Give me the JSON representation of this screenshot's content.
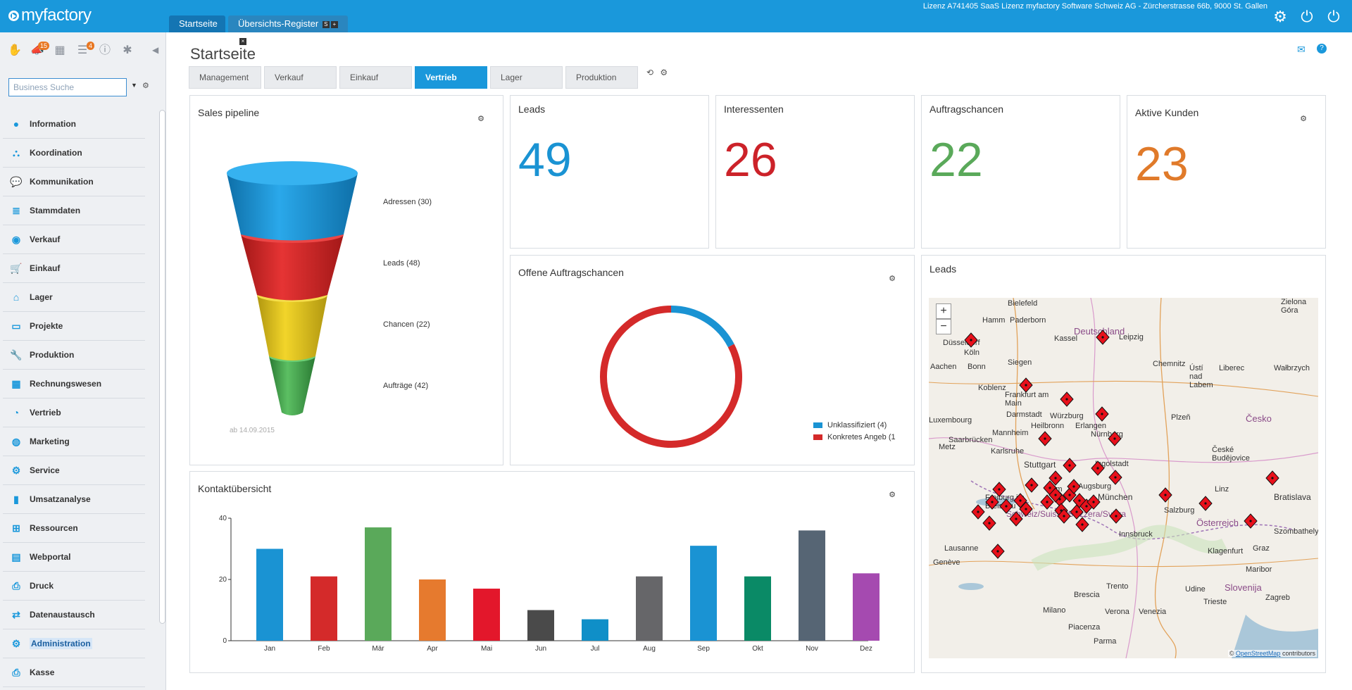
{
  "app": {
    "logo_text": "myfactory",
    "top_tabs": [
      "Startseite",
      "Übersichts-Register"
    ],
    "top_tab_buttons": [
      "S",
      "+",
      "×"
    ],
    "license": "Lizenz A741405 SaaS Lizenz myfactory Software Schweiz AG - Zürcherstrasse 66b, 9000 St. Gallen",
    "top_icons": [
      "gear-icon",
      "power-icon",
      "power-download-icon"
    ]
  },
  "sidebar": {
    "icons": [
      {
        "icon": "hand-icon",
        "badge": ""
      },
      {
        "icon": "megaphone-icon",
        "badge": "15"
      },
      {
        "icon": "calendar-icon",
        "badge": ""
      },
      {
        "icon": "notes-icon",
        "badge": "4"
      },
      {
        "icon": "info-icon",
        "badge": ""
      },
      {
        "icon": "puzzle-icon",
        "badge": ""
      }
    ],
    "search_placeholder": "Business Suche",
    "items": [
      {
        "label": "Information",
        "icon": "info-icon"
      },
      {
        "label": "Koordination",
        "icon": "network-icon"
      },
      {
        "label": "Kommunikation",
        "icon": "chat-icon"
      },
      {
        "label": "Stammdaten",
        "icon": "database-icon"
      },
      {
        "label": "Verkauf",
        "icon": "coins-icon"
      },
      {
        "label": "Einkauf",
        "icon": "cart-icon"
      },
      {
        "label": "Lager",
        "icon": "warehouse-icon"
      },
      {
        "label": "Projekte",
        "icon": "presentation-icon"
      },
      {
        "label": "Produktion",
        "icon": "wrench-hand-icon"
      },
      {
        "label": "Rechnungswesen",
        "icon": "grid-icon"
      },
      {
        "label": "Vertrieb",
        "icon": "chart-icon"
      },
      {
        "label": "Marketing",
        "icon": "globe-icon"
      },
      {
        "label": "Service",
        "icon": "gear-icon"
      },
      {
        "label": "Umsatzanalyse",
        "icon": "bar-chart-icon"
      },
      {
        "label": "Ressourcen",
        "icon": "resources-icon"
      },
      {
        "label": "Webportal",
        "icon": "webportal-icon"
      },
      {
        "label": "Druck",
        "icon": "printer-icon"
      },
      {
        "label": "Datenaustausch",
        "icon": "exchange-icon"
      },
      {
        "label": "Administration",
        "icon": "gear-icon"
      },
      {
        "label": "Kasse",
        "icon": "register-icon"
      }
    ],
    "selected": "Administration"
  },
  "main": {
    "title": "Startseite",
    "tabs": [
      "Management",
      "Verkauf",
      "Einkauf",
      "Vertrieb",
      "Lager",
      "Produktion"
    ],
    "active_tab": "Vertrieb"
  },
  "sales_pipeline": {
    "title": "Sales pipeline",
    "stages": [
      {
        "label": "Adressen (30)",
        "color": "#1a93d3"
      },
      {
        "label": "Leads (48)",
        "color": "#d32a2a"
      },
      {
        "label": "Chancen (22)",
        "color": "#e7c716"
      },
      {
        "label": "Aufträge (42)",
        "color": "#3f9b48"
      }
    ],
    "date_note": "ab 14.09.2015"
  },
  "kpis": [
    {
      "title": "Leads",
      "value": "49",
      "color": "#1a93d3"
    },
    {
      "title": "Interessenten",
      "value": "26",
      "color": "#cc2229"
    },
    {
      "title": "Auftragschancen",
      "value": "22",
      "color": "#5aa95a"
    },
    {
      "title": "Aktive Kunden",
      "value": "23",
      "color": "#e07a2a"
    }
  ],
  "offene_auftragschancen": {
    "title": "Offene Auftragschancen",
    "legend": [
      {
        "label": "Unklassifiziert (4)",
        "color": "#1a93d3"
      },
      {
        "label": "Konkretes Angeb (1",
        "color": "#d42a2a"
      }
    ]
  },
  "leads_map": {
    "title": "Leads",
    "zoom_in": "+",
    "zoom_out": "−",
    "attribution_prefix": "©",
    "attribution_link": "OpenStreetMap",
    "attribution_suffix": "contributors",
    "cities": [
      "Bielefeld",
      "Paderborn",
      "Hamm",
      "Düsseldorf",
      "Köln",
      "Bonn",
      "Aachen",
      "Siegen",
      "Kassel",
      "Leipzig",
      "Chemnitz",
      "Koblenz",
      "Frankfurt am Main",
      "Darmstadt",
      "Würzburg",
      "Erlangen",
      "Nürnberg",
      "Luxembourg",
      "Saarbrücken",
      "Karlsruhe",
      "Mannheim",
      "Heilbronn",
      "Stuttgart",
      "Ingolstadt",
      "Augsburg",
      "Ulm",
      "München",
      "Freiburg im Breisgau",
      "Salzburg",
      "Linz",
      "Bratislava",
      "Plzeň",
      "České Budějovice",
      "Liberec",
      "Ústí nad Labem",
      "Metz",
      "Lausanne",
      "Genève",
      "Innsbruck",
      "Klagenfurt",
      "Graz",
      "Szombathely",
      "Maribor",
      "Udine",
      "Trieste",
      "Zagreb",
      "Milano",
      "Verona",
      "Venezia",
      "Brescia",
      "Trento",
      "Piacenza",
      "Parma",
      "Zielona Góra",
      "Wałbrzych"
    ],
    "countries": [
      "Deutschland",
      "Česko",
      "Österreich",
      "Slovenija",
      "Schweiz/Suisse/Svizzera/Svizra"
    ]
  },
  "kontaktuebersicht": {
    "title": "Kontaktübersicht"
  },
  "chart_data": [
    {
      "type": "bar",
      "title": "Kontaktübersicht",
      "categories": [
        "Jan",
        "Feb",
        "Mär",
        "Apr",
        "Mai",
        "Jun",
        "Jul",
        "Aug",
        "Sep",
        "Okt",
        "Nov",
        "Dez"
      ],
      "values": [
        30,
        21,
        37,
        20,
        17,
        10,
        7,
        21,
        31,
        21,
        36,
        22
      ],
      "colors": [
        "#1a93d3",
        "#d42a2a",
        "#5aa95a",
        "#e67a2e",
        "#e3172b",
        "#4a4a4a",
        "#0f8fc8",
        "#666669",
        "#1a93d3",
        "#0a8a66",
        "#566574",
        "#a54ab0"
      ],
      "ylim": [
        0,
        40
      ],
      "yticks": [
        0,
        20,
        40
      ],
      "grid": false
    },
    {
      "type": "pie",
      "title": "Offene Auftragschancen",
      "labels": [
        "Unklassifiziert (4)",
        "Konkretes Angeb (1"
      ],
      "values": [
        4,
        19
      ],
      "colors": [
        "#1a93d3",
        "#d42a2a"
      ]
    },
    {
      "type": "bar",
      "title": "Sales pipeline",
      "categories": [
        "Adressen",
        "Leads",
        "Chancen",
        "Aufträge"
      ],
      "values": [
        30,
        48,
        22,
        42
      ]
    }
  ]
}
